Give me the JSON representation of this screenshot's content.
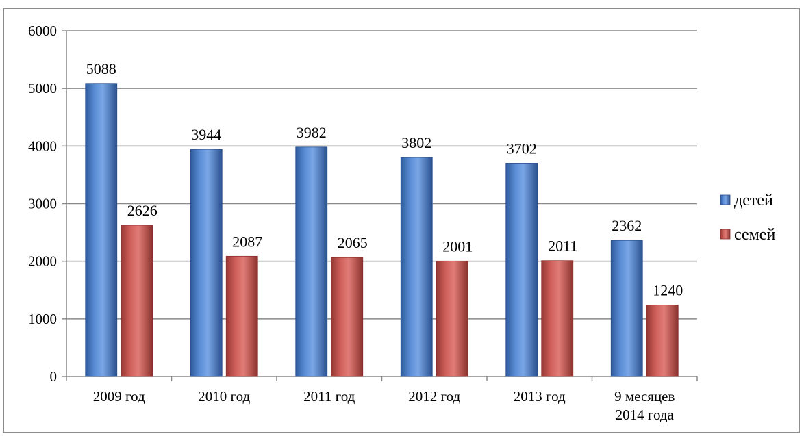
{
  "chart_data": {
    "type": "bar",
    "categories": [
      "2009 год",
      "2010 год",
      "2011 год",
      "2012 год",
      "2013 год",
      "9 месяцев\n2014 года"
    ],
    "series": [
      {
        "name": "детей",
        "values": [
          5088,
          3944,
          3982,
          3802,
          3702,
          2362
        ],
        "color": "#4a7bc4"
      },
      {
        "name": "семей",
        "values": [
          2626,
          2087,
          2065,
          2001,
          2011,
          1240
        ],
        "color": "#c0504d"
      }
    ],
    "title": "",
    "xlabel": "",
    "ylabel": "",
    "ylim": [
      0,
      6000
    ],
    "yticks": [
      0,
      1000,
      2000,
      3000,
      4000,
      5000,
      6000
    ],
    "grid": true,
    "legend_position": "right"
  }
}
